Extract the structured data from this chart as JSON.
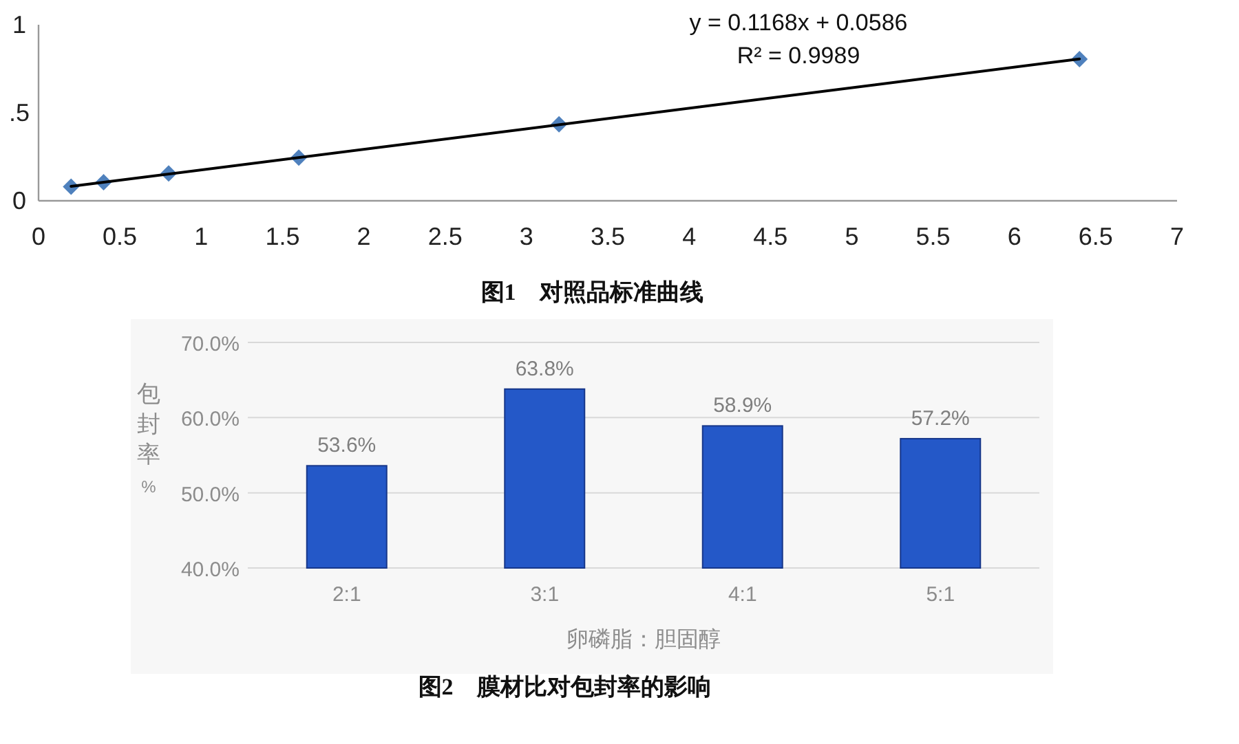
{
  "chart_data": [
    {
      "type": "scatter",
      "x": [
        0.2,
        0.4,
        0.8,
        1.6,
        3.2,
        6.4
      ],
      "xlim": [
        0,
        7
      ],
      "xticks": [
        0,
        0.5,
        1,
        1.5,
        2,
        2.5,
        3,
        3.5,
        4,
        4.5,
        5,
        5.5,
        6,
        6.5,
        7
      ],
      "ylim": [
        0,
        1
      ],
      "yticks": [
        0,
        {
          "value": 0.5,
          "label": ".5"
        },
        1
      ],
      "grid": false,
      "series": [
        {
          "marker": "diamond",
          "color": "#4f81bd",
          "values": [
            0.08,
            0.105,
            0.155,
            0.245,
            0.435,
            0.805
          ]
        },
        {
          "type": "line",
          "color": "#000000",
          "x": [
            0.2,
            6.4
          ],
          "values": [
            0.082,
            0.806
          ]
        }
      ],
      "annotations": [
        "y = 0.1168x + 0.0586",
        "R² = 0.9989",
        "图1　对照品标准曲线"
      ]
    },
    {
      "type": "bar",
      "categories": [
        "2:1",
        "3:1",
        "4:1",
        "5:1"
      ],
      "ylim": [
        40,
        70
      ],
      "yticks": [
        {
          "value": 40,
          "label": "40.0%"
        },
        {
          "value": 50,
          "label": "50.0%"
        },
        {
          "value": 60,
          "label": "60.0%"
        },
        {
          "value": 70,
          "label": "70.0%"
        }
      ],
      "grid": "y",
      "ylabel": "包封率%",
      "xlabel": "卵磷脂：胆固醇",
      "series": [
        {
          "color": "#2458c8",
          "values": [
            53.6,
            63.8,
            58.9,
            57.2
          ],
          "value_labels": [
            "53.6%",
            "63.8%",
            "58.9%",
            "57.2%"
          ]
        }
      ],
      "annotations": [
        "图2　膜材比对包封率的影响"
      ]
    }
  ]
}
